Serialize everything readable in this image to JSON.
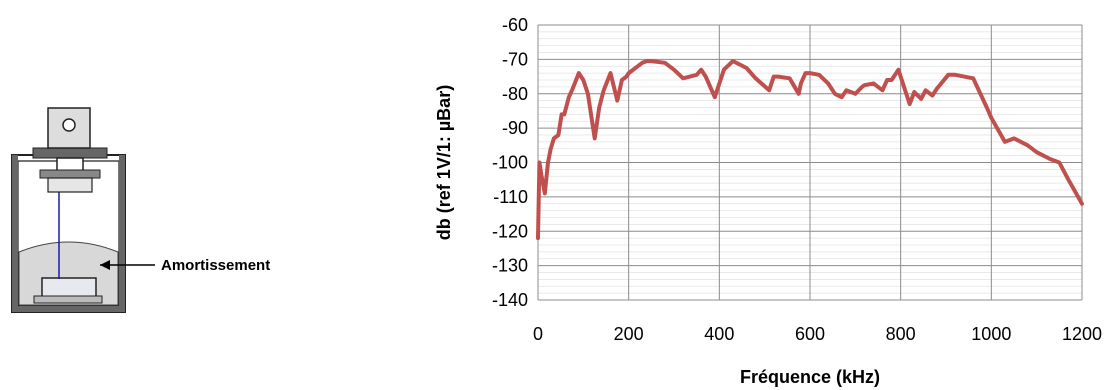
{
  "diagram": {
    "callout_label": "Amortissement",
    "colors": {
      "housing": "#555555",
      "damping": "#d8d8d8",
      "wire": "#1a1aa8"
    },
    "icons": [
      "sensor-housing-icon"
    ]
  },
  "chart_data": {
    "type": "line",
    "title": "",
    "xlabel": "Fréquence (kHz)",
    "ylabel": "db (ref 1V/1: µBar)",
    "xlim": [
      0,
      1200
    ],
    "ylim": [
      -140,
      -60
    ],
    "xticks": [
      0,
      200,
      400,
      600,
      800,
      1000,
      1200
    ],
    "yticks": [
      -60,
      -70,
      -80,
      -90,
      -100,
      -110,
      -120,
      -130,
      -140
    ],
    "grid": {
      "major_x": true,
      "major_y": true,
      "minor_y": true
    },
    "legend": "none",
    "series": [
      {
        "color": "#c0504d",
        "x": [
          0,
          3,
          8,
          15,
          22,
          28,
          35,
          45,
          52,
          58,
          68,
          75,
          90,
          100,
          110,
          125,
          135,
          145,
          160,
          175,
          185,
          195,
          200,
          230,
          240,
          250,
          280,
          300,
          320,
          350,
          360,
          370,
          390,
          395,
          410,
          430,
          445,
          460,
          480,
          510,
          520,
          530,
          555,
          575,
          580,
          590,
          600,
          620,
          640,
          655,
          670,
          680,
          700,
          715,
          720,
          740,
          760,
          770,
          780,
          795,
          820,
          830,
          845,
          855,
          870,
          880,
          905,
          920,
          940,
          960,
          990,
          1000,
          1030,
          1050,
          1080,
          1100,
          1130,
          1150,
          1170,
          1200
        ],
        "y": [
          -122,
          -100,
          -104,
          -109,
          -100,
          -96,
          -93,
          -92,
          -86,
          -86,
          -81,
          -79,
          -74,
          -76,
          -80,
          -93,
          -84,
          -79,
          -74,
          -82,
          -76,
          -75,
          -74,
          -71,
          -70.5,
          -70.5,
          -71,
          -73,
          -75.5,
          -74.5,
          -73,
          -75,
          -81,
          -79,
          -73,
          -70.5,
          -71.5,
          -72.5,
          -75.5,
          -79,
          -75,
          -75,
          -75.5,
          -80,
          -77,
          -74,
          -74,
          -74.5,
          -77,
          -80,
          -81,
          -79,
          -80,
          -78,
          -77.5,
          -77,
          -79,
          -76,
          -76,
          -73,
          -83,
          -79.5,
          -81.5,
          -79,
          -80.5,
          -78.5,
          -74.5,
          -74.5,
          -75,
          -75.5,
          -84,
          -87,
          -94,
          -93,
          -95,
          -97,
          -99,
          -100,
          -105,
          -112
        ]
      }
    ]
  }
}
